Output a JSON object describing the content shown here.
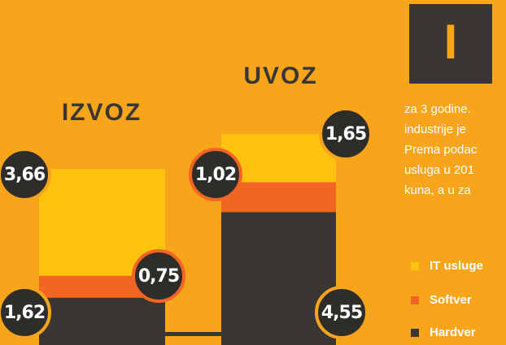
{
  "chart_data": {
    "type": "stacked_bar",
    "categories": [
      "IZVOZ",
      "UVOZ"
    ],
    "series": [
      {
        "name": "Hardver",
        "color": "#3a3631",
        "values": [
          1.62,
          4.55
        ],
        "value_labels": [
          "1,62",
          "4,55"
        ]
      },
      {
        "name": "Softver",
        "color": "#f26522",
        "values": [
          0.75,
          1.02
        ],
        "value_labels": [
          "0,75",
          "1,02"
        ]
      },
      {
        "name": "IT usluge",
        "color": "#ffc20e",
        "values": [
          3.66,
          1.65
        ],
        "value_labels": [
          "3,66",
          "1,65"
        ]
      }
    ]
  },
  "article": {
    "drop_cap": "I",
    "lines": [
      "za 3 godine.",
      "industrije je",
      "Prema podac",
      "usluga u 201",
      "kuna, a u  za"
    ]
  }
}
